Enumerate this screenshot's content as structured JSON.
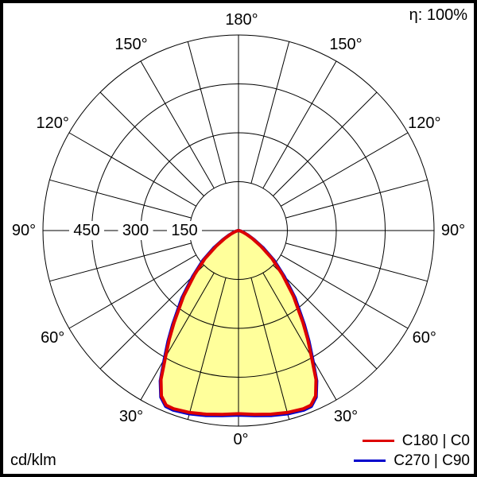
{
  "header": {
    "efficiency_label": "η: 100%"
  },
  "footer": {
    "unit_label": "cd/klm"
  },
  "chart_data": {
    "type": "polar",
    "subtype": "photometric-intensity-distribution",
    "units": "cd/klm",
    "efficiency_percent": 100,
    "symmetric_about_vertical": true,
    "angles_deg": [
      0,
      5,
      10,
      15,
      20,
      22.5,
      25,
      27.5,
      30,
      32.5,
      35,
      40,
      45,
      50,
      55,
      60,
      65,
      70,
      75,
      80,
      85,
      90
    ],
    "series": [
      {
        "name": "C180 | C0",
        "color": "#dd0000",
        "values": [
          562,
          566,
          572,
          578,
          582,
          580,
          560,
          515,
          448,
          395,
          345,
          262,
          190,
          135,
          84,
          48,
          26,
          13,
          6,
          2,
          1,
          0
        ]
      },
      {
        "name": "C270 | C90",
        "color": "#0000cc",
        "values": [
          566,
          570,
          576,
          582,
          586,
          584,
          564,
          520,
          455,
          402,
          352,
          270,
          198,
          143,
          92,
          55,
          31,
          16,
          8,
          3,
          1,
          0
        ]
      }
    ],
    "fill_color": "#ffff9b",
    "grid_color": "#000000",
    "radial_ticks": [
      150,
      300,
      450
    ],
    "radial_max": 600,
    "spoke_step_deg": 15,
    "angle_label_step_deg": 30,
    "angle_labels": [
      "0°",
      "30°",
      "60°",
      "90°",
      "120°",
      "150°",
      "180°"
    ]
  }
}
